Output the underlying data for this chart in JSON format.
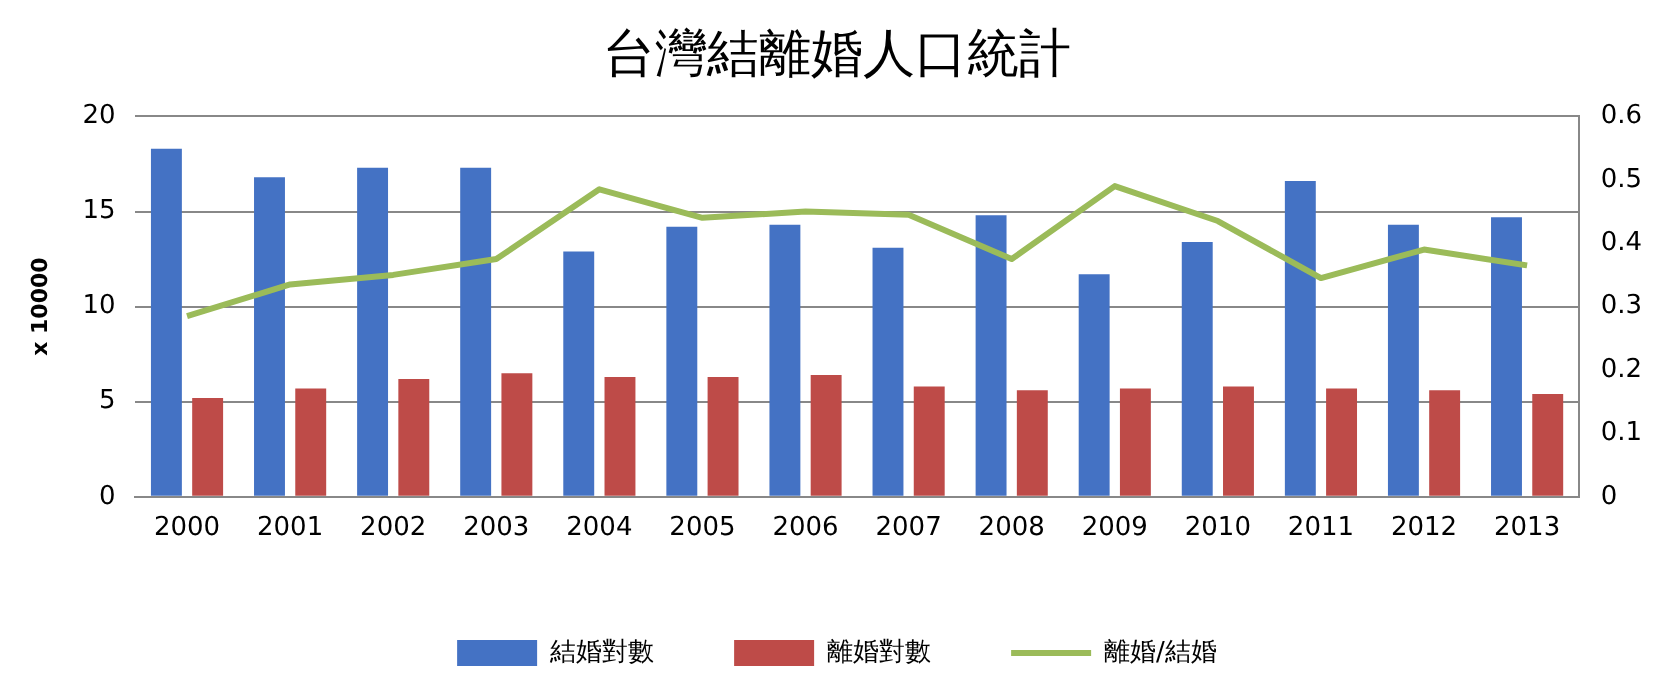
{
  "chart_data": {
    "type": "bar",
    "title": "台灣結離婚人口統計",
    "ylabel": "x 10000",
    "categories": [
      "2000",
      "2001",
      "2002",
      "2003",
      "2004",
      "2005",
      "2006",
      "2007",
      "2008",
      "2009",
      "2010",
      "2011",
      "2012",
      "2013"
    ],
    "series": [
      {
        "name": "結婚對數",
        "color": "#4472c4",
        "values": [
          18.3,
          16.8,
          17.3,
          17.3,
          12.9,
          14.2,
          14.3,
          13.1,
          14.8,
          11.7,
          13.4,
          16.6,
          14.3,
          14.7
        ]
      },
      {
        "name": "離婚對數",
        "color": "#be4b48",
        "values": [
          5.2,
          5.7,
          6.2,
          6.5,
          6.3,
          6.3,
          6.4,
          5.8,
          5.6,
          5.7,
          5.8,
          5.7,
          5.6,
          5.4
        ]
      },
      {
        "name": "離婚/結婚",
        "type": "line",
        "axis": "y2",
        "color": "#9bbb59",
        "values": [
          0.285,
          0.335,
          0.35,
          0.375,
          0.485,
          0.44,
          0.45,
          0.445,
          0.375,
          0.49,
          0.435,
          0.345,
          0.39,
          0.365
        ]
      }
    ],
    "ylim": [
      0,
      20
    ],
    "yticks": [
      0,
      5,
      10,
      15,
      20
    ],
    "y2lim": [
      0,
      0.6
    ],
    "y2ticks": [
      0,
      0.1,
      0.2,
      0.3,
      0.4,
      0.5,
      0.6
    ],
    "grid": "y",
    "legend": "bottom",
    "marker": "none"
  }
}
